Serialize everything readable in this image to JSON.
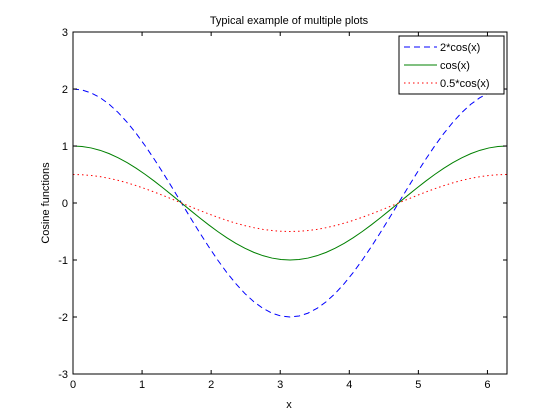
{
  "figure": {
    "background": "#ffffff"
  },
  "chart_data": {
    "type": "line",
    "title": "Typical example of multiple plots",
    "xlabel": "x",
    "ylabel": "Cosine functions",
    "xlim": [
      0,
      6.2832
    ],
    "ylim": [
      -3,
      3
    ],
    "xticks": [
      0,
      1,
      2,
      3,
      4,
      5,
      6
    ],
    "yticks": [
      -3,
      -2,
      -1,
      0,
      1,
      2,
      3
    ],
    "grid": false,
    "legend_position": "top-right",
    "x_range": {
      "start": 0,
      "end": 6.2832,
      "samples": 49
    },
    "series": [
      {
        "name": "2*cos(x)",
        "amplitude": 2,
        "function": "cos",
        "color": "#0000ff",
        "line_style": "dashed"
      },
      {
        "name": "cos(x)",
        "amplitude": 1,
        "function": "cos",
        "color": "#008000",
        "line_style": "solid"
      },
      {
        "name": "0.5*cos(x)",
        "amplitude": 0.5,
        "function": "cos",
        "color": "#ff0000",
        "line_style": "dotted"
      }
    ]
  }
}
